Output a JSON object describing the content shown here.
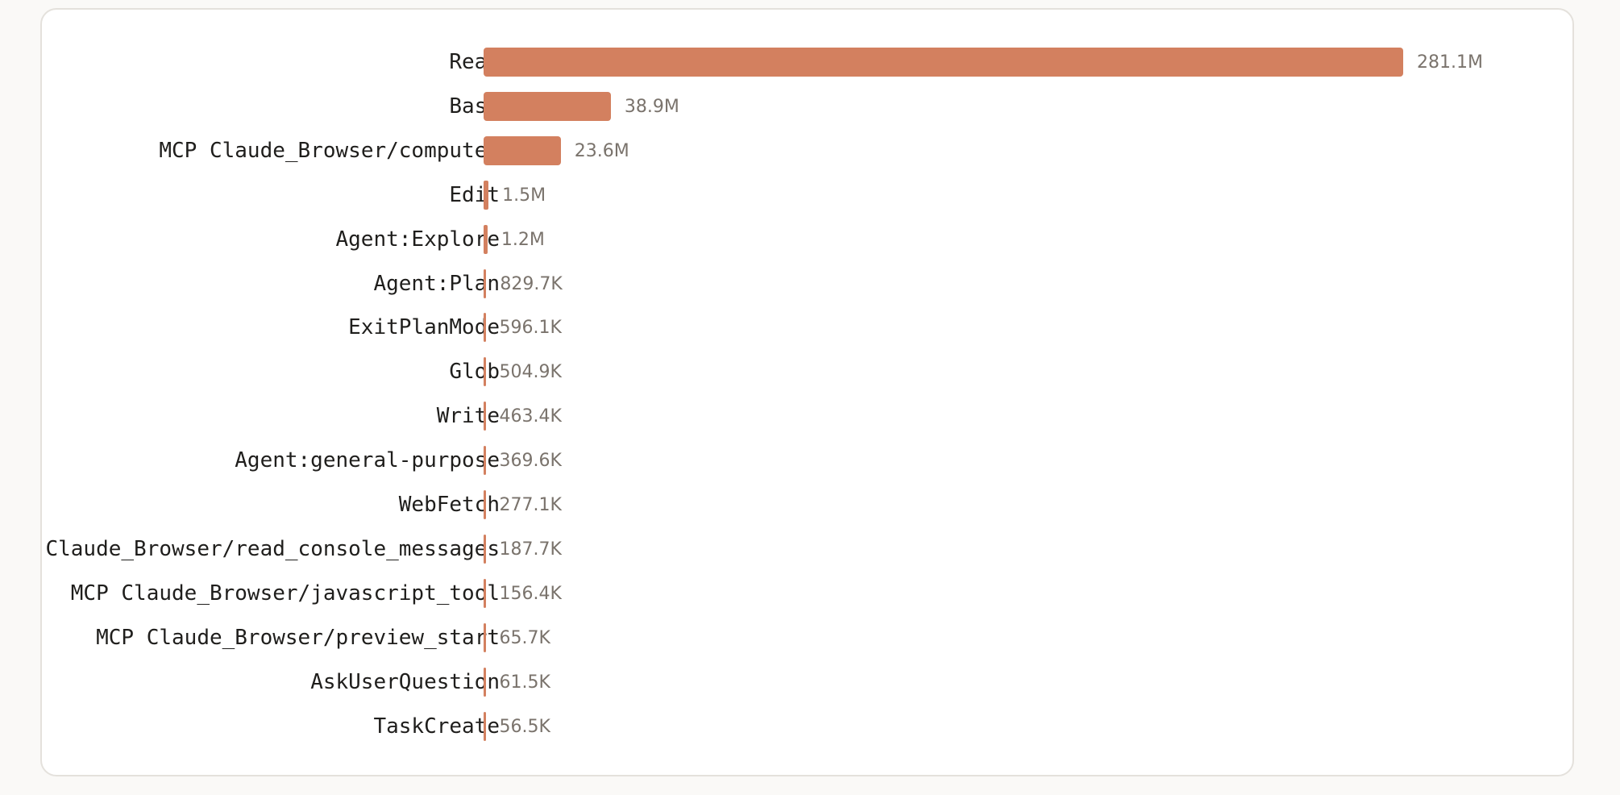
{
  "chart_data": {
    "type": "bar",
    "orientation": "horizontal",
    "bar_color": "#d3805f",
    "categories": [
      "Read",
      "Bash",
      "MCP Claude_Browser/computer",
      "Edit",
      "Agent:Explore",
      "Agent:Plan",
      "ExitPlanMode",
      "Glob",
      "Write",
      "Agent:general-purpose",
      "WebFetch",
      "MCP Claude_Browser/read_console_messages",
      "MCP Claude_Browser/javascript_tool",
      "MCP Claude_Browser/preview_start",
      "AskUserQuestion",
      "TaskCreate"
    ],
    "values": [
      281100000,
      38900000,
      23600000,
      1500000,
      1200000,
      829700,
      596100,
      504900,
      463400,
      369600,
      277100,
      187700,
      156400,
      65700,
      61500,
      56500
    ],
    "value_labels": [
      "281.1M",
      "38.9M",
      "23.6M",
      "1.5M",
      "1.2M",
      "829.7K",
      "596.1K",
      "504.9K",
      "463.4K",
      "369.6K",
      "277.1K",
      "187.7K",
      "156.4K",
      "65.7K",
      "61.5K",
      "56.5K"
    ],
    "title": "",
    "xlabel": "",
    "ylabel": "",
    "grid": false,
    "legend": "none"
  }
}
